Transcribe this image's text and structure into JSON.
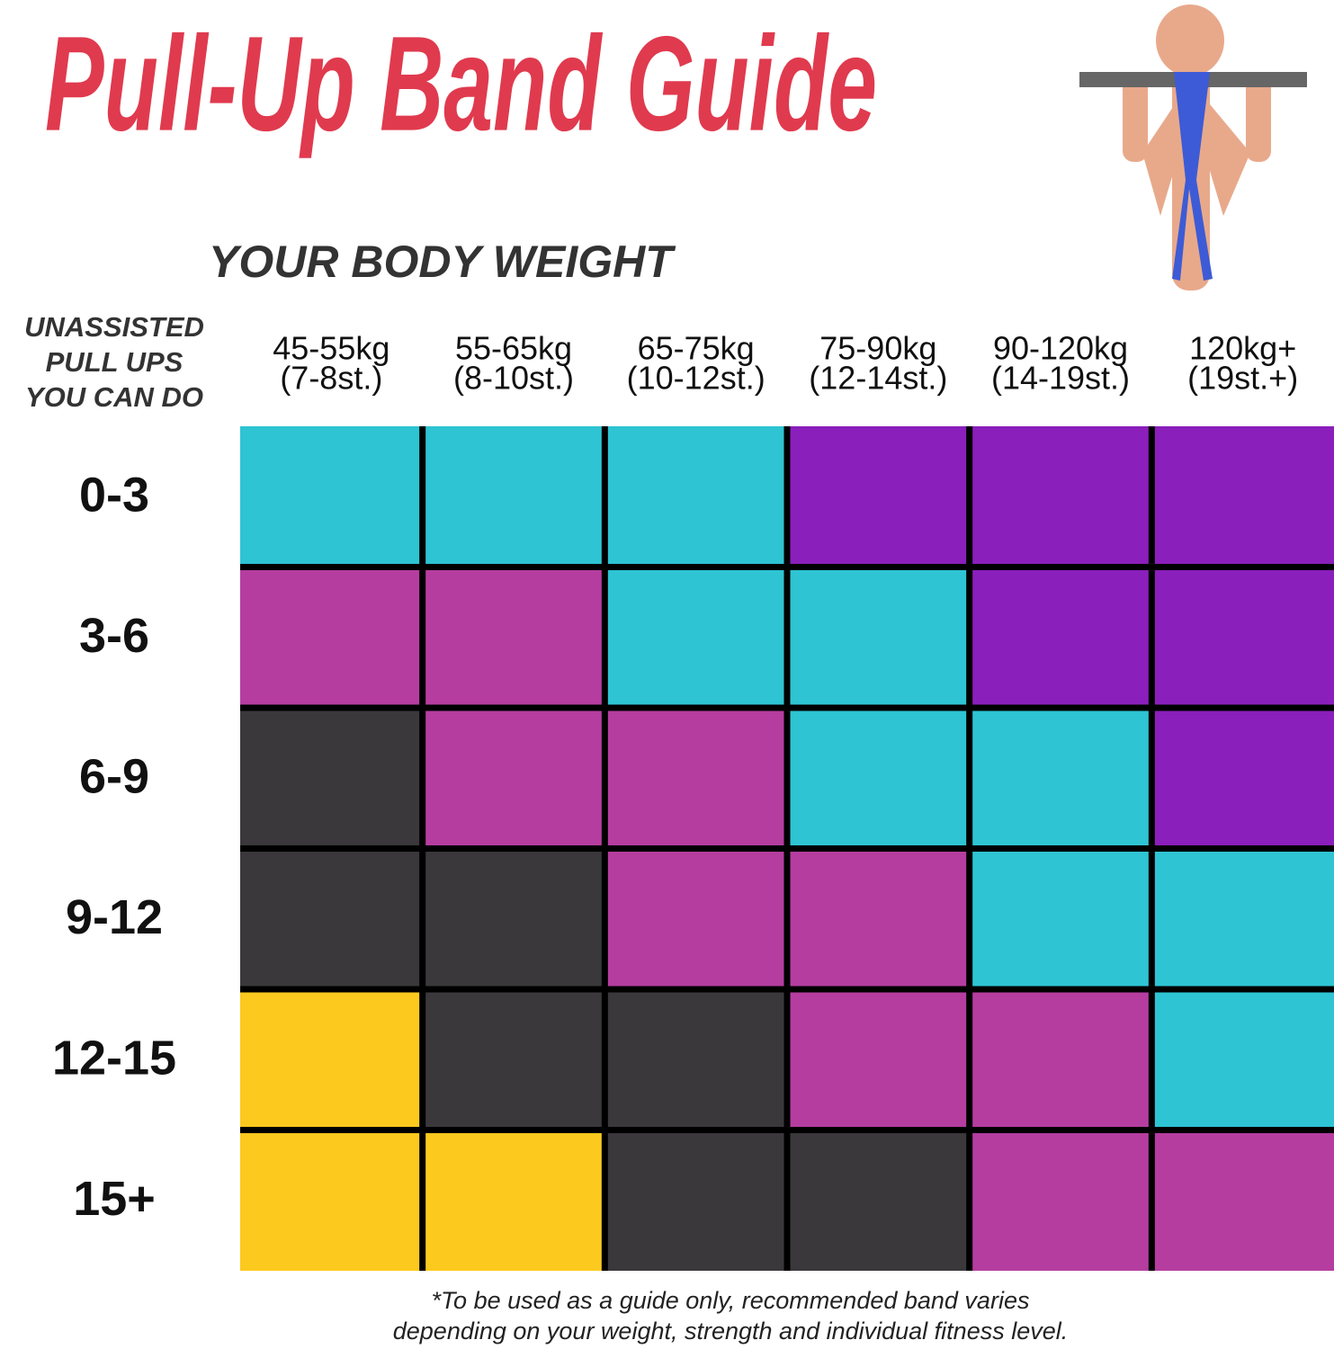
{
  "title": "Pull-Up Band Guide",
  "subtitle": "YOUR BODY WEIGHT",
  "row_header": [
    "UNASSISTED",
    "PULL UPS",
    "YOU CAN DO"
  ],
  "columns": [
    [
      "45-55kg",
      "(7-8st.)"
    ],
    [
      "55-65kg",
      "(8-10st.)"
    ],
    [
      "65-75kg",
      "(10-12st.)"
    ],
    [
      "75-90kg",
      "(12-14st.)"
    ],
    [
      "90-120kg",
      "(14-19st.)"
    ],
    [
      "120kg+",
      "(19st.+)"
    ]
  ],
  "rows": [
    {
      "label": "0-3",
      "cells": [
        "#2ec4d3",
        "#2ec4d3",
        "#2ec4d3",
        "#8a1fbb",
        "#8a1fbb",
        "#8a1fbb"
      ]
    },
    {
      "label": "3-6",
      "cells": [
        "#b53d9f",
        "#b53d9f",
        "#2ec4d3",
        "#2ec4d3",
        "#8a1fbb",
        "#8a1fbb"
      ]
    },
    {
      "label": "6-9",
      "cells": [
        "#3a383b",
        "#b53d9f",
        "#b53d9f",
        "#2ec4d3",
        "#2ec4d3",
        "#8a1fbb"
      ]
    },
    {
      "label": "9-12",
      "cells": [
        "#3a383b",
        "#3a383b",
        "#b53d9f",
        "#b53d9f",
        "#2ec4d3",
        "#2ec4d3"
      ]
    },
    {
      "label": "12-15",
      "cells": [
        "#fcc91e",
        "#3a383b",
        "#3a383b",
        "#b53d9f",
        "#b53d9f",
        "#2ec4d3"
      ]
    },
    {
      "label": "15+",
      "cells": [
        "#fcc91e",
        "#fcc91e",
        "#3a383b",
        "#3a383b",
        "#b53d9f",
        "#b53d9f"
      ]
    }
  ],
  "footnote": [
    "*To be used as a guide only, recommended band varies",
    "depending on your weight, strength and individual fitness level."
  ]
}
